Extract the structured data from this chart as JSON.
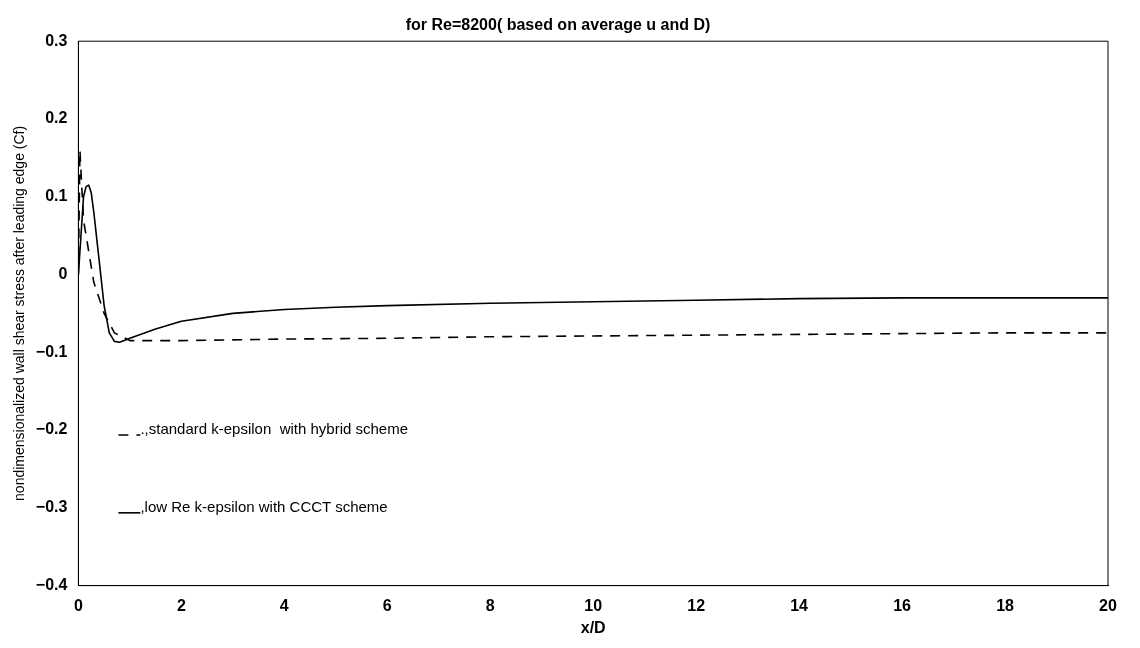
{
  "chart_data": {
    "type": "line",
    "title": "for Re=8200( based on average u and D)",
    "xlabel": "x/D",
    "ylabel": "nondimensionalized wall shear stress after leading edge (Cf)",
    "xlim": [
      0,
      20
    ],
    "xticks": [
      0,
      2,
      4,
      6,
      8,
      10,
      12,
      14,
      16,
      18,
      20
    ],
    "ylim": [
      -0.4,
      0.3
    ],
    "yticks": [
      -0.4,
      -0.3,
      -0.2,
      -0.1,
      0,
      0.1,
      0.2,
      0.3
    ],
    "grid": false,
    "legend": "left",
    "marker": "none",
    "series": [
      {
        "name": ".,standard k-epsilon  with hybrid scheme",
        "color": "#000000",
        "line_style": "dashed",
        "x": [
          0,
          0.03,
          0.06,
          0.1,
          0.2,
          0.3,
          0.5,
          0.7,
          1,
          2,
          4,
          6,
          8,
          10,
          12,
          14,
          16,
          18,
          20
        ],
        "values": [
          0,
          0.16,
          0.12,
          0.07,
          0.03,
          -0.01,
          -0.05,
          -0.075,
          -0.085,
          -0.085,
          -0.083,
          -0.082,
          -0.08,
          -0.079,
          -0.078,
          -0.077,
          -0.076,
          -0.075,
          -0.075
        ]
      },
      {
        "name": ",low Re k-epsilon with CCCT scheme",
        "color": "#000000",
        "line_style": "solid",
        "x": [
          0,
          0.05,
          0.1,
          0.15,
          0.2,
          0.25,
          0.3,
          0.4,
          0.5,
          0.6,
          0.7,
          0.8,
          1,
          1.5,
          2,
          3,
          4,
          5,
          6,
          8,
          10,
          12,
          14,
          16,
          18,
          20
        ],
        "values": [
          0,
          0.05,
          0.1,
          0.113,
          0.115,
          0.105,
          0.08,
          0.02,
          -0.04,
          -0.075,
          -0.086,
          -0.087,
          -0.082,
          -0.07,
          -0.06,
          -0.05,
          -0.045,
          -0.042,
          -0.04,
          -0.037,
          -0.035,
          -0.033,
          -0.031,
          -0.03,
          -0.03,
          -0.03
        ]
      }
    ]
  }
}
